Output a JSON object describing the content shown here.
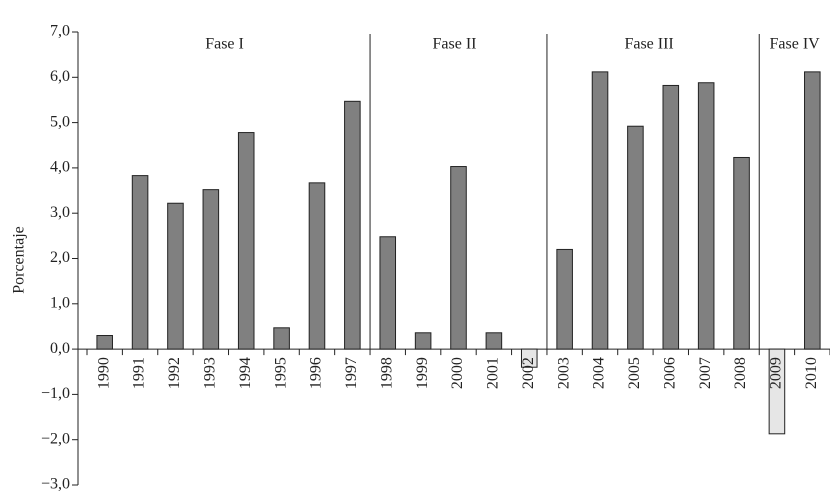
{
  "chart_data": {
    "type": "bar",
    "y_label": "Porcentaje",
    "categories": [
      "1990",
      "1991",
      "1992",
      "1993",
      "1994",
      "1995",
      "1996",
      "1997",
      "1998",
      "1999",
      "2000",
      "2001",
      "2002",
      "2003",
      "2004",
      "2005",
      "2006",
      "2007",
      "2008",
      "2009",
      "2010"
    ],
    "values": [
      0.3,
      3.83,
      3.22,
      3.52,
      4.78,
      0.47,
      3.67,
      5.47,
      2.48,
      0.36,
      4.03,
      0.36,
      -0.4,
      2.2,
      6.12,
      4.92,
      5.82,
      5.88,
      4.23,
      -1.87,
      6.12
    ],
    "color": "#808080",
    "negative_color": "#e6e6e6",
    "ylim": [
      -3,
      7
    ],
    "yticks": [
      {
        "value": -3,
        "label": "−3,0"
      },
      {
        "value": -2,
        "label": "−2,0"
      },
      {
        "value": -1,
        "label": "−1,0"
      },
      {
        "value": 0,
        "label": "0,0"
      },
      {
        "value": 1,
        "label": "1,0"
      },
      {
        "value": 2,
        "label": "2,0"
      },
      {
        "value": 3,
        "label": "3,0"
      },
      {
        "value": 4,
        "label": "4,0"
      },
      {
        "value": 5,
        "label": "5,0"
      },
      {
        "value": 6,
        "label": "6,0"
      },
      {
        "value": 7,
        "label": "7,0"
      }
    ],
    "phases": [
      {
        "label": "Fase I",
        "start": "1990",
        "end": "1997"
      },
      {
        "label": "Fase II",
        "start": "1998",
        "end": "2002"
      },
      {
        "label": "Fase III",
        "start": "2003",
        "end": "2008"
      },
      {
        "label": "Fase IV",
        "start": "2009",
        "end": "2010"
      }
    ]
  }
}
